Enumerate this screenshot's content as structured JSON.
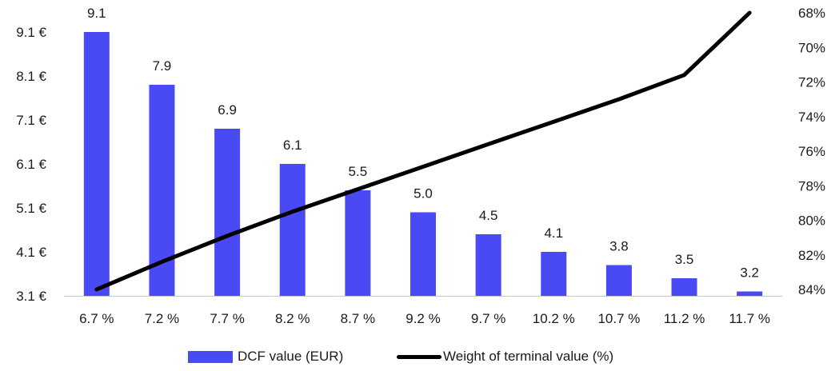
{
  "chart_data": {
    "type": "bar",
    "categories": [
      "6.7 %",
      "7.2 %",
      "7.7 %",
      "8.2 %",
      "8.7 %",
      "9.2 %",
      "9.7 %",
      "10.2 %",
      "10.7 %",
      "11.2 %",
      "11.7 %"
    ],
    "series": [
      {
        "name": "DCF value (EUR)",
        "type": "bar",
        "axis": "left",
        "color": "#4a4af5",
        "values": [
          9.1,
          7.9,
          6.9,
          6.1,
          5.5,
          5.0,
          4.5,
          4.1,
          3.8,
          3.5,
          3.2
        ],
        "labels": [
          "9.1",
          "7.9",
          "6.9",
          "6.1",
          "5.5",
          "5.0",
          "4.5",
          "4.1",
          "3.8",
          "3.5",
          "3.2"
        ]
      },
      {
        "name": "Weight of terminal value (%)",
        "type": "line",
        "axis": "right",
        "color": "#000000",
        "values": [
          84.0,
          82.4,
          80.9,
          79.5,
          78.2,
          76.9,
          75.6,
          74.3,
          73.0,
          71.6,
          68.0
        ]
      }
    ],
    "y_left": {
      "ticks": [
        "3.1 €",
        "4.1 €",
        "5.1 €",
        "6.1 €",
        "7.1 €",
        "8.1 €",
        "9.1 €"
      ],
      "tick_values": [
        3.1,
        4.1,
        5.1,
        6.1,
        7.1,
        8.1,
        9.1
      ],
      "ylim": [
        3.1,
        9.1
      ]
    },
    "y_right": {
      "ticks": [
        "68%",
        "70%",
        "72%",
        "74%",
        "76%",
        "78%",
        "80%",
        "82%",
        "84%"
      ],
      "tick_values": [
        68,
        70,
        72,
        74,
        76,
        78,
        80,
        82,
        84
      ],
      "ylim": [
        84,
        68
      ],
      "reversed": true
    },
    "title": "",
    "xlabel": "",
    "ylabel": "",
    "grid": false,
    "legend": "bottom-center"
  },
  "legend": {
    "bar_label": "DCF value (EUR)",
    "line_label": "Weight of terminal value (%)"
  }
}
